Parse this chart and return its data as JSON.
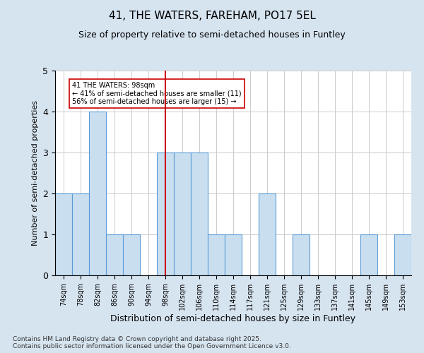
{
  "title": "41, THE WATERS, FAREHAM, PO17 5EL",
  "subtitle": "Size of property relative to semi-detached houses in Funtley",
  "xlabel": "Distribution of semi-detached houses by size in Funtley",
  "ylabel": "Number of semi-detached properties",
  "categories": [
    "74sqm",
    "78sqm",
    "82sqm",
    "86sqm",
    "90sqm",
    "94sqm",
    "98sqm",
    "102sqm",
    "106sqm",
    "110sqm",
    "114sqm",
    "117sqm",
    "121sqm",
    "125sqm",
    "129sqm",
    "133sqm",
    "137sqm",
    "141sqm",
    "145sqm",
    "149sqm",
    "153sqm"
  ],
  "values": [
    2,
    2,
    4,
    1,
    1,
    0,
    3,
    3,
    3,
    1,
    1,
    0,
    2,
    0,
    1,
    0,
    0,
    0,
    1,
    0,
    1
  ],
  "bar_color": "#c9dff0",
  "bar_edge_color": "#5b9bd5",
  "vline_x": 6,
  "vline_color": "#cc0000",
  "annotation_text": "41 THE WATERS: 98sqm\n← 41% of semi-detached houses are smaller (11)\n56% of semi-detached houses are larger (15) →",
  "annotation_box_color": "#cc0000",
  "ylim": [
    0,
    5
  ],
  "yticks": [
    0,
    1,
    2,
    3,
    4,
    5
  ],
  "footnote": "Contains HM Land Registry data © Crown copyright and database right 2025.\nContains public sector information licensed under the Open Government Licence v3.0.",
  "background_color": "#d6e4f0",
  "plot_background_color": "#ffffff",
  "title_fontsize": 11,
  "subtitle_fontsize": 9,
  "footnote_fontsize": 6.5
}
